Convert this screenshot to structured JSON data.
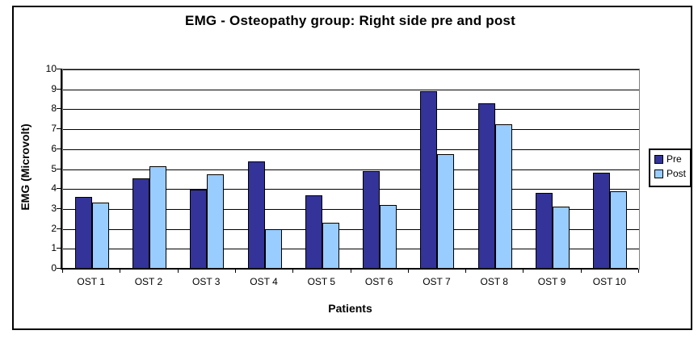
{
  "chart_data": {
    "type": "bar",
    "title": "EMG - Osteopathy group: Right side pre and post",
    "xlabel": "Patients",
    "ylabel": "EMG (Microvolt)",
    "categories": [
      "OST 1",
      "OST 2",
      "OST 3",
      "OST 4",
      "OST 5",
      "OST 6",
      "OST 7",
      "OST 8",
      "OST 9",
      "OST 10"
    ],
    "series": [
      {
        "name": "Pre",
        "color": "#333399",
        "values": [
          3.6,
          4.55,
          3.95,
          5.4,
          3.7,
          4.9,
          8.9,
          8.3,
          3.8,
          4.8
        ]
      },
      {
        "name": "Post",
        "color": "#99CCFF",
        "values": [
          3.3,
          5.15,
          4.75,
          2.0,
          2.3,
          3.2,
          5.75,
          7.25,
          3.1,
          3.9
        ]
      }
    ],
    "ylim": [
      0,
      10
    ],
    "y_ticks": [
      0,
      1,
      2,
      3,
      4,
      5,
      6,
      7,
      8,
      9,
      10
    ],
    "grid": true,
    "legend_position": "right",
    "gridline_color": "#000000",
    "bar_border_color": "#000000",
    "plot_border_color": "#808080"
  }
}
